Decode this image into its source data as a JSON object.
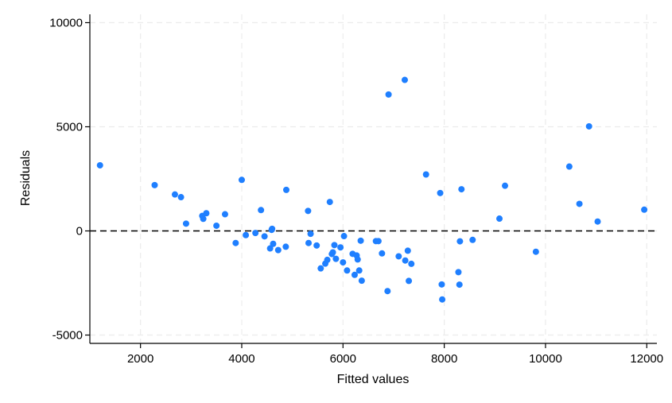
{
  "chart_data": {
    "type": "scatter",
    "title": "",
    "xlabel": "Fitted values",
    "ylabel": "Residuals",
    "xlim": [
      1000,
      12200
    ],
    "ylim": [
      -5400,
      10400
    ],
    "xticks": [
      2000,
      4000,
      6000,
      8000,
      10000,
      12000
    ],
    "xtick_labels": [
      "2000",
      "4000",
      "6000",
      "8000",
      "10000",
      "12000"
    ],
    "yticks": [
      -5000,
      0,
      5000,
      10000
    ],
    "ytick_labels": [
      "-5000",
      "0",
      "5000",
      "10000"
    ],
    "grid": true,
    "reference_line": {
      "y": 0,
      "style": "dashed"
    },
    "colors": {
      "point": "#1f7fff",
      "grid": "#ececec",
      "axis": "#000000",
      "reference_line": "#000000"
    },
    "points": [
      [
        1200,
        3150
      ],
      [
        2280,
        2200
      ],
      [
        2680,
        1750
      ],
      [
        2800,
        1620
      ],
      [
        2900,
        350
      ],
      [
        3220,
        720
      ],
      [
        3240,
        580
      ],
      [
        3300,
        850
      ],
      [
        3500,
        250
      ],
      [
        3670,
        800
      ],
      [
        3880,
        -580
      ],
      [
        4000,
        2450
      ],
      [
        4080,
        -200
      ],
      [
        4270,
        -100
      ],
      [
        4380,
        1000
      ],
      [
        4450,
        -260
      ],
      [
        4560,
        -840
      ],
      [
        4590,
        50
      ],
      [
        4600,
        100
      ],
      [
        4620,
        -620
      ],
      [
        4720,
        -920
      ],
      [
        4870,
        -760
      ],
      [
        4880,
        1970
      ],
      [
        5310,
        960
      ],
      [
        5320,
        -580
      ],
      [
        5360,
        -140
      ],
      [
        5480,
        -700
      ],
      [
        5560,
        -1800
      ],
      [
        5650,
        -1570
      ],
      [
        5690,
        -1390
      ],
      [
        5740,
        1390
      ],
      [
        5780,
        -1110
      ],
      [
        5800,
        -1030
      ],
      [
        5830,
        -680
      ],
      [
        5860,
        -1340
      ],
      [
        5950,
        -790
      ],
      [
        6000,
        -1510
      ],
      [
        6020,
        -250
      ],
      [
        6080,
        -1900
      ],
      [
        6190,
        -1100
      ],
      [
        6230,
        -2110
      ],
      [
        6270,
        -1180
      ],
      [
        6290,
        -1370
      ],
      [
        6320,
        -1900
      ],
      [
        6350,
        -470
      ],
      [
        6370,
        -2390
      ],
      [
        6650,
        -490
      ],
      [
        6700,
        -490
      ],
      [
        6770,
        -1080
      ],
      [
        6880,
        -2890
      ],
      [
        6900,
        6550
      ],
      [
        7100,
        -1220
      ],
      [
        7220,
        7250
      ],
      [
        7230,
        -1420
      ],
      [
        7280,
        -950
      ],
      [
        7300,
        -2400
      ],
      [
        7350,
        -1580
      ],
      [
        7640,
        2710
      ],
      [
        7920,
        1820
      ],
      [
        7950,
        -2570
      ],
      [
        7960,
        -3290
      ],
      [
        8280,
        -1980
      ],
      [
        8300,
        -2580
      ],
      [
        8310,
        -500
      ],
      [
        8340,
        2000
      ],
      [
        8560,
        -430
      ],
      [
        9090,
        590
      ],
      [
        9200,
        2170
      ],
      [
        9810,
        -1000
      ],
      [
        10470,
        3090
      ],
      [
        10670,
        1300
      ],
      [
        10860,
        5020
      ],
      [
        11030,
        450
      ],
      [
        11950,
        1020
      ]
    ]
  }
}
